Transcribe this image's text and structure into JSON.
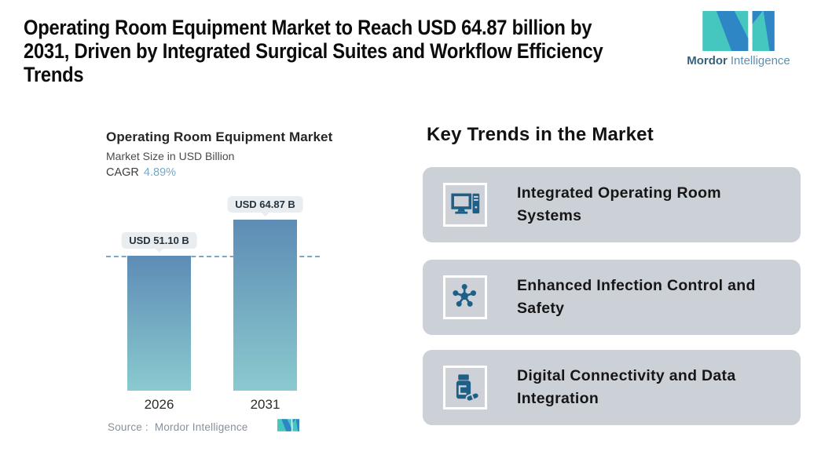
{
  "colors": {
    "accent_teal": "#45c7c0",
    "brand_blue": "#2f86c5",
    "brand_dark": "#35617e",
    "brand_light_text": "#5c90b2",
    "icon_blue": "#1d5f86",
    "card_bg": "#ccd0d7",
    "tile_bg": "#ced2d8",
    "bar_top": "#5d8cb5",
    "bar_bottom": "#8acacf",
    "dashed_line": "#7aa6c8",
    "badge_bg": "#e9edf0",
    "badge_text": "#26323c",
    "cagr_value": "#74aac9",
    "source_text": "#87909a"
  },
  "header": {
    "title_lines": [
      "Operating Room Equipment Market to Reach USD 64.87 billion by",
      "2031, Driven by Integrated Surgical Suites and Workflow Efficiency",
      "Trends"
    ],
    "brand": {
      "name_bold": "Mordor",
      "name_regular": "Intelligence"
    }
  },
  "chart": {
    "title": "Operating Room Equipment Market",
    "subtitle": "Market Size in USD Billion",
    "cagr_label": "CAGR",
    "cagr_value": "4.89%",
    "source_label": "Source :",
    "source_value": "Mordor Intelligence"
  },
  "chart_data": {
    "type": "bar",
    "title": "Operating Room Equipment Market",
    "subtitle": "Market Size in USD Billion",
    "unit": "USD Billion",
    "cagr_percent": 4.89,
    "categories": [
      "2026",
      "2031"
    ],
    "values": [
      51.1,
      64.87
    ],
    "value_labels": [
      "USD 51.10 B",
      "USD 64.87 B"
    ],
    "ylim": [
      0,
      64.87
    ],
    "reference_line_at": 51.1,
    "grid": false,
    "legend": false
  },
  "trends": {
    "heading": "Key Trends in the Market",
    "items": [
      {
        "icon": "computer-icon",
        "label_lines": [
          "Integrated Operating Room",
          "Systems"
        ]
      },
      {
        "icon": "molecule-icon",
        "label_lines": [
          "Enhanced Infection Control and",
          "Safety"
        ]
      },
      {
        "icon": "pill-bottle-icon",
        "label_lines": [
          "Digital Connectivity and Data",
          "Integration"
        ]
      }
    ]
  }
}
